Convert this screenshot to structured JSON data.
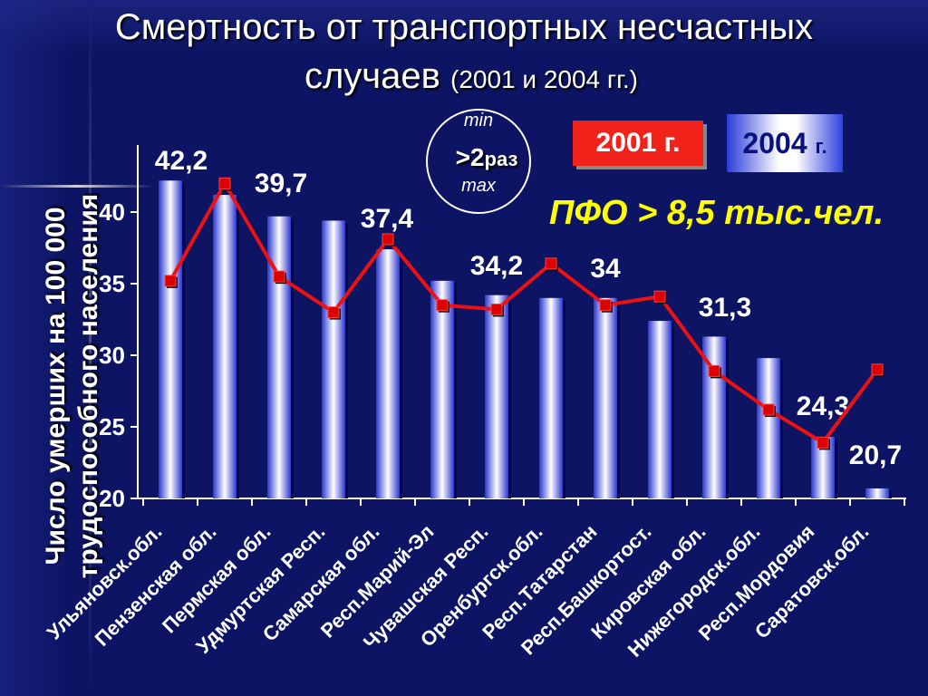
{
  "title_line1": "Смертность от транспортных несчастных",
  "title_line2": "случаев",
  "title_years": "(2001 и 2004 гг.)",
  "ylabel_line1": "Число умерших на 100 000",
  "ylabel_line2": "трудоспособного населения",
  "ratio": {
    "min": "min",
    "value": ">2",
    "unit": "раз",
    "max": "max"
  },
  "legend": {
    "y2001": "2001 г.",
    "y2004": "2004",
    "y2004_suffix": "г."
  },
  "pfo": "ПФО  > 8,5 тыс.чел.",
  "colors": {
    "line": "#ee1111",
    "marker": "#dd0000",
    "bar_edge": "#2a36d0",
    "bar_center": "#ffffff",
    "pfo": "#ffff00"
  },
  "chart_data": {
    "type": "bar",
    "categories": [
      "Ульяновск.обл.",
      "Пензенская обл.",
      "Пермская обл.",
      "Удмуртская Респ.",
      "Самарская обл.",
      "Респ.Марий-Эл",
      "Чувашская Респ.",
      "Оренбургск.обл.",
      "Респ.Татарстан",
      "Респ.Башкортост.",
      "Кировская обл.",
      "Нижегородск.обл.",
      "Респ.Мордовия",
      "Саратовск.обл."
    ],
    "series": [
      {
        "name": "2004 г.",
        "type": "bar",
        "values": [
          42.2,
          41.2,
          39.7,
          39.4,
          37.4,
          35.2,
          34.2,
          34.0,
          34.0,
          32.4,
          31.3,
          29.8,
          24.3,
          20.7
        ]
      },
      {
        "name": "2001 г.",
        "type": "line",
        "values": [
          35.2,
          42.0,
          35.5,
          33.0,
          38.1,
          33.5,
          33.2,
          36.4,
          33.5,
          34.1,
          28.9,
          26.2,
          23.9,
          29.0
        ]
      }
    ],
    "bar_labels": [
      {
        "index": 0,
        "text": "42,2"
      },
      {
        "index": 2,
        "text": "39,7"
      },
      {
        "index": 4,
        "text": "37,4"
      },
      {
        "index": 6,
        "text": "34,2"
      },
      {
        "index": 8,
        "text": "34"
      },
      {
        "index": 10,
        "text": "31,3"
      },
      {
        "index": 12,
        "text": "24,3"
      },
      {
        "index": 13,
        "text": "20,7"
      }
    ],
    "yticks": [
      "20",
      "25",
      "30",
      "35",
      "40"
    ],
    "ylim": [
      20,
      45
    ],
    "grid": false,
    "legend_position": "top-right"
  }
}
